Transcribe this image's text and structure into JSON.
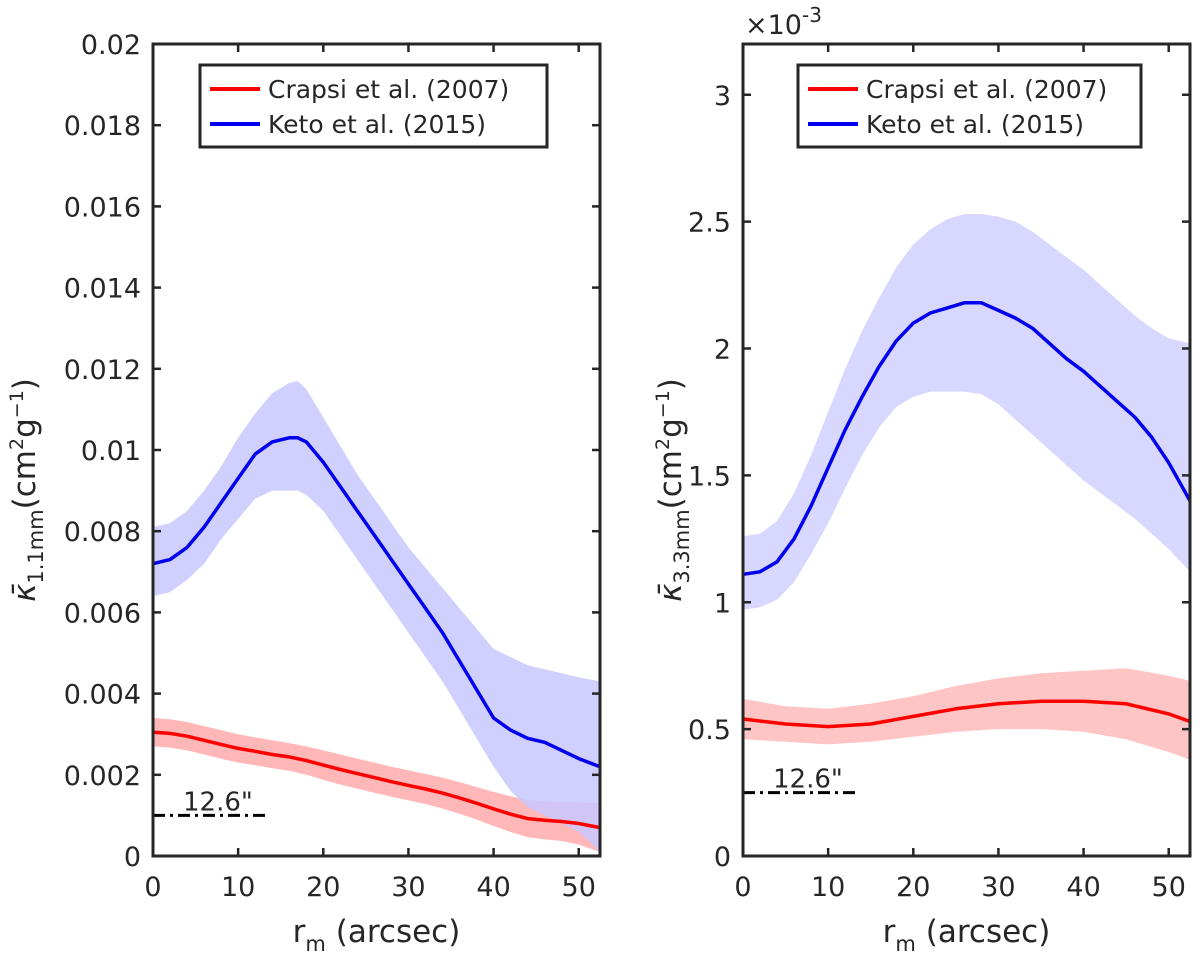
{
  "chart_data": [
    {
      "type": "line",
      "xlabel_main": "r",
      "xlabel_sub": "m",
      "xlabel_rest": " (arcsec)",
      "ylabel": {
        "symbol": "κ̄",
        "sub": "1.1mm",
        "unit_open": "(cm",
        "unit_sup1": "2",
        "unit_mid": "g",
        "unit_sup2": "−1",
        "unit_close": ")"
      },
      "xlim": [
        0,
        52.5
      ],
      "ylim": [
        0,
        0.02
      ],
      "xticks": [
        0,
        10,
        20,
        30,
        40,
        50
      ],
      "yticks": [
        {
          "value": 0,
          "label": "0"
        },
        {
          "value": 0.002,
          "label": "0.002"
        },
        {
          "value": 0.004,
          "label": "0.004"
        },
        {
          "value": 0.006,
          "label": "0.006"
        },
        {
          "value": 0.008,
          "label": "0.008"
        },
        {
          "value": 0.01,
          "label": "0.01"
        },
        {
          "value": 0.012,
          "label": "0.012"
        },
        {
          "value": 0.014,
          "label": "0.014"
        },
        {
          "value": 0.016,
          "label": "0.016"
        },
        {
          "value": 0.018,
          "label": "0.018"
        },
        {
          "value": 0.02,
          "label": "0.02"
        }
      ],
      "exponent_label": null,
      "legend": {
        "position": "top",
        "entries": [
          "Crapsi et al. (2007)",
          "Keto et al. (2015)"
        ]
      },
      "scale_bar": {
        "label": "12.6\"",
        "x0": 0,
        "x1": 12.6,
        "y": 0.001
      },
      "series": [
        {
          "name": "Crapsi et al. (2007)",
          "color": "#ff0000",
          "band_color": "#ffaaaa",
          "x": [
            0,
            2,
            4,
            6,
            8,
            10,
            12,
            14,
            16,
            18,
            20,
            22,
            24,
            26,
            28,
            30,
            32,
            34,
            36,
            38,
            40,
            42,
            44,
            46,
            48,
            50,
            52.5
          ],
          "y": [
            0.00305,
            0.00302,
            0.00295,
            0.00285,
            0.00275,
            0.00265,
            0.00258,
            0.0025,
            0.00244,
            0.00235,
            0.00224,
            0.00213,
            0.00203,
            0.00193,
            0.00183,
            0.00174,
            0.00165,
            0.00155,
            0.00143,
            0.0013,
            0.00116,
            0.00103,
            0.00092,
            0.00088,
            0.00085,
            0.0008,
            0.0007
          ],
          "upper": [
            0.0034,
            0.00337,
            0.0033,
            0.0032,
            0.0031,
            0.003,
            0.00292,
            0.00285,
            0.00278,
            0.0027,
            0.0026,
            0.0025,
            0.0024,
            0.0023,
            0.0022,
            0.00211,
            0.00202,
            0.00193,
            0.00182,
            0.0017,
            0.00158,
            0.00147,
            0.00138,
            0.00135,
            0.00133,
            0.00132,
            0.0013
          ],
          "lower": [
            0.0027,
            0.00267,
            0.0026,
            0.0025,
            0.0024,
            0.0023,
            0.00224,
            0.00216,
            0.0021,
            0.002,
            0.00188,
            0.00176,
            0.00166,
            0.00156,
            0.00146,
            0.00137,
            0.00128,
            0.00117,
            0.00104,
            0.0009,
            0.00074,
            0.00059,
            0.00046,
            0.00041,
            0.00037,
            0.00028,
            0.0001
          ]
        },
        {
          "name": "Keto et al. (2015)",
          "color": "#0000ee",
          "band_color": "#c8c8ff",
          "x": [
            0,
            2,
            4,
            6,
            8,
            10,
            12,
            14,
            16,
            17,
            18,
            20,
            22,
            24,
            26,
            28,
            30,
            32,
            34,
            36,
            38,
            40,
            42,
            44,
            46,
            48,
            50,
            52.5
          ],
          "y": [
            0.0072,
            0.0073,
            0.0076,
            0.0081,
            0.0087,
            0.0093,
            0.0099,
            0.0102,
            0.0103,
            0.0103,
            0.0102,
            0.0097,
            0.0091,
            0.0085,
            0.0079,
            0.0073,
            0.0067,
            0.0061,
            0.0055,
            0.0048,
            0.0041,
            0.0034,
            0.0031,
            0.0029,
            0.0028,
            0.0026,
            0.0024,
            0.0022
          ],
          "upper": [
            0.0081,
            0.0082,
            0.0085,
            0.009,
            0.0096,
            0.0103,
            0.0109,
            0.0114,
            0.01165,
            0.0117,
            0.0115,
            0.0108,
            0.0101,
            0.0094,
            0.0088,
            0.0082,
            0.0076,
            0.0071,
            0.0066,
            0.0061,
            0.0056,
            0.0051,
            0.0049,
            0.0047,
            0.0046,
            0.0045,
            0.0044,
            0.0043
          ],
          "lower": [
            0.0064,
            0.0065,
            0.0068,
            0.0072,
            0.0078,
            0.0083,
            0.0088,
            0.009,
            0.009,
            0.009,
            0.0089,
            0.0085,
            0.0079,
            0.0073,
            0.0067,
            0.0061,
            0.0055,
            0.0049,
            0.0043,
            0.0036,
            0.0029,
            0.0022,
            0.0016,
            0.0012,
            0.001,
            0.0008,
            0.0006,
            0.0001
          ]
        }
      ]
    },
    {
      "type": "line",
      "xlabel_main": "r",
      "xlabel_sub": "m",
      "xlabel_rest": " (arcsec)",
      "ylabel": {
        "symbol": "κ̄",
        "sub": "3.3mm",
        "unit_open": "(cm",
        "unit_sup1": "2",
        "unit_mid": "g",
        "unit_sup2": "−1",
        "unit_close": ")"
      },
      "xlim": [
        0,
        52.5
      ],
      "ylim": [
        0,
        3.2
      ],
      "xticks": [
        0,
        10,
        20,
        30,
        40,
        50
      ],
      "yticks": [
        {
          "value": 0,
          "label": "0"
        },
        {
          "value": 0.5,
          "label": "0.5"
        },
        {
          "value": 1,
          "label": "1"
        },
        {
          "value": 1.5,
          "label": "1.5"
        },
        {
          "value": 2,
          "label": "2"
        },
        {
          "value": 2.5,
          "label": "2.5"
        },
        {
          "value": 3,
          "label": "3"
        }
      ],
      "exponent_label": {
        "base": "×10",
        "power": "-3"
      },
      "legend": {
        "position": "top",
        "entries": [
          "Crapsi et al. (2007)",
          "Keto et al. (2015)"
        ]
      },
      "scale_bar": {
        "label": "12.6\"",
        "x0": 0,
        "x1": 12.6,
        "y": 0.25
      },
      "series": [
        {
          "name": "Crapsi et al. (2007)",
          "color": "#ff0000",
          "band_color": "#ffbbbb",
          "x": [
            0,
            5,
            10,
            15,
            20,
            25,
            30,
            35,
            40,
            45,
            50,
            52.5
          ],
          "y": [
            0.54,
            0.52,
            0.51,
            0.52,
            0.55,
            0.58,
            0.6,
            0.61,
            0.61,
            0.6,
            0.56,
            0.53
          ],
          "upper": [
            0.62,
            0.59,
            0.58,
            0.6,
            0.63,
            0.67,
            0.7,
            0.72,
            0.73,
            0.74,
            0.71,
            0.69
          ],
          "lower": [
            0.46,
            0.45,
            0.44,
            0.45,
            0.47,
            0.49,
            0.5,
            0.5,
            0.49,
            0.46,
            0.41,
            0.38
          ]
        },
        {
          "name": "Keto et al. (2015)",
          "color": "#0000ee",
          "band_color": "#d0d0ff",
          "x": [
            0,
            2,
            4,
            6,
            8,
            10,
            12,
            14,
            16,
            18,
            20,
            22,
            24,
            26,
            28,
            30,
            32,
            34,
            36,
            38,
            40,
            42,
            44,
            46,
            48,
            50,
            52.5
          ],
          "y": [
            1.11,
            1.12,
            1.16,
            1.25,
            1.38,
            1.53,
            1.68,
            1.81,
            1.93,
            2.03,
            2.1,
            2.14,
            2.16,
            2.18,
            2.18,
            2.15,
            2.12,
            2.08,
            2.02,
            1.96,
            1.91,
            1.85,
            1.79,
            1.73,
            1.65,
            1.55,
            1.4
          ],
          "upper": [
            1.26,
            1.27,
            1.32,
            1.43,
            1.58,
            1.75,
            1.92,
            2.07,
            2.2,
            2.32,
            2.41,
            2.47,
            2.51,
            2.53,
            2.53,
            2.52,
            2.5,
            2.46,
            2.41,
            2.36,
            2.31,
            2.25,
            2.19,
            2.13,
            2.08,
            2.04,
            2.02
          ],
          "lower": [
            0.97,
            0.98,
            1.01,
            1.08,
            1.19,
            1.31,
            1.45,
            1.58,
            1.69,
            1.77,
            1.81,
            1.83,
            1.83,
            1.83,
            1.82,
            1.78,
            1.72,
            1.66,
            1.6,
            1.54,
            1.48,
            1.43,
            1.38,
            1.33,
            1.27,
            1.21,
            1.12
          ]
        }
      ]
    }
  ]
}
